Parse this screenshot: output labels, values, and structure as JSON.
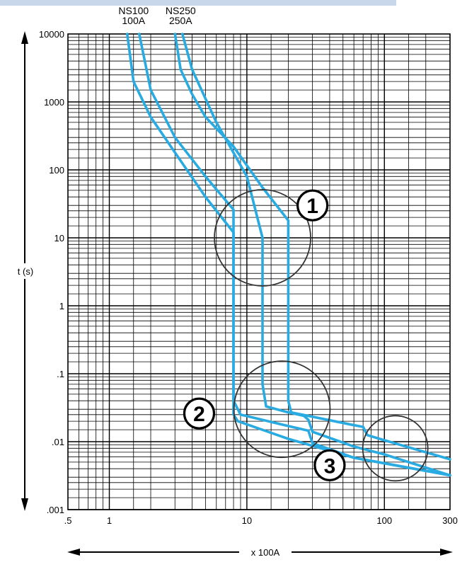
{
  "chart_data": {
    "type": "line",
    "title": "",
    "xlabel": "x 100A",
    "ylabel": "t (s)",
    "x_scale": "log",
    "y_scale": "log",
    "xlim": [
      0.5,
      300
    ],
    "ylim": [
      0.001,
      10000
    ],
    "grid": true,
    "x_ticks": [
      {
        "value": 0.5,
        "label": ".5"
      },
      {
        "value": 1,
        "label": "1"
      },
      {
        "value": 10,
        "label": "10"
      },
      {
        "value": 100,
        "label": "100"
      },
      {
        "value": 300,
        "label": "300"
      }
    ],
    "y_ticks": [
      {
        "value": 0.001,
        "label": ".001"
      },
      {
        "value": 0.01,
        "label": ".01"
      },
      {
        "value": 0.1,
        "label": ".1"
      },
      {
        "value": 1,
        "label": "1"
      },
      {
        "value": 10,
        "label": "10"
      },
      {
        "value": 100,
        "label": "100"
      },
      {
        "value": 1000,
        "label": "1000"
      },
      {
        "value": 10000,
        "label": "10000"
      }
    ],
    "curve_labels": [
      {
        "lines": [
          "NS100",
          "100A"
        ],
        "x": 1.5,
        "y": 12500
      },
      {
        "lines": [
          "NS250",
          "250A"
        ],
        "x": 3.3,
        "y": 12500
      }
    ],
    "series_color": "#29abe2",
    "series": [
      {
        "values": [
          [
            1.35,
            10000
          ],
          [
            1.5,
            2000
          ],
          [
            2,
            600
          ],
          [
            3,
            180
          ],
          [
            5,
            40
          ],
          [
            8,
            12
          ],
          [
            8,
            0.025
          ],
          [
            8.6,
            0.02
          ],
          [
            20,
            0.011
          ],
          [
            60,
            0.0058
          ],
          [
            300,
            0.0032
          ]
        ]
      },
      {
        "values": [
          [
            1.65,
            10000
          ],
          [
            2,
            1500
          ],
          [
            3,
            300
          ],
          [
            5,
            80
          ],
          [
            8,
            26
          ],
          [
            8,
            0.04
          ],
          [
            9,
            0.025
          ],
          [
            20,
            0.017
          ],
          [
            28,
            0.0145
          ],
          [
            30,
            0.0095
          ],
          [
            60,
            0.0058
          ],
          [
            300,
            0.0032
          ]
        ]
      },
      {
        "values": [
          [
            3,
            10000
          ],
          [
            3.3,
            3000
          ],
          [
            4,
            1300
          ],
          [
            5,
            600
          ],
          [
            8,
            220
          ],
          [
            13,
            55
          ],
          [
            20,
            18
          ],
          [
            20,
            0.04
          ],
          [
            21,
            0.027
          ],
          [
            60,
            0.0175
          ],
          [
            70,
            0.0165
          ],
          [
            75,
            0.0125
          ],
          [
            100,
            0.0105
          ],
          [
            300,
            0.0055
          ]
        ]
      },
      {
        "values": [
          [
            3.4,
            10000
          ],
          [
            4,
            3000
          ],
          [
            6,
            500
          ],
          [
            10,
            80
          ],
          [
            13,
            10
          ],
          [
            13,
            0.07
          ],
          [
            13.8,
            0.033
          ],
          [
            20,
            0.027
          ],
          [
            26,
            0.024
          ],
          [
            28,
            0.021
          ],
          [
            30,
            0.014
          ],
          [
            60,
            0.0085
          ],
          [
            100,
            0.0065
          ],
          [
            300,
            0.0032
          ]
        ]
      }
    ],
    "annotations": [
      {
        "label": "1",
        "circle_center": [
          13,
          10
        ],
        "label_pos": [
          30,
          30
        ]
      },
      {
        "label": "2",
        "circle_center": [
          18,
          0.03
        ],
        "label_pos": [
          4.5,
          0.026
        ]
      },
      {
        "label": "3",
        "circle_center": [
          120,
          0.008
        ],
        "label_pos": [
          40,
          0.0045
        ]
      }
    ]
  }
}
